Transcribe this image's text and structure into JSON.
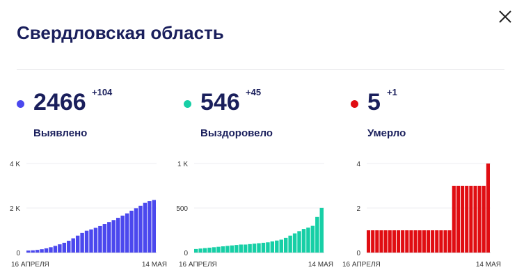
{
  "header": {
    "title": "Свердловская область",
    "close_icon": "close-icon"
  },
  "panels": [
    {
      "id": "detected",
      "value": "2466",
      "delta": "+104",
      "label": "Выявлено",
      "color": "#4b48ee",
      "chart_data": {
        "type": "bar",
        "x_start_label": "16 АПРЕЛЯ",
        "x_end_label": "14 МАЯ",
        "y_ticks": [
          "0",
          "2 K",
          "4 K"
        ],
        "y_tick_values": [
          0,
          2000,
          4000
        ],
        "ylim": [
          0,
          4000
        ],
        "values": [
          90,
          100,
          120,
          150,
          190,
          240,
          300,
          370,
          440,
          530,
          640,
          760,
          880,
          980,
          1040,
          1110,
          1190,
          1280,
          1370,
          1460,
          1560,
          1660,
          1760,
          1880,
          1990,
          2100,
          2230,
          2310,
          2362
        ],
        "grid": true
      }
    },
    {
      "id": "recovered",
      "value": "546",
      "delta": "+45",
      "label": "Выздоровело",
      "color": "#17cfa6",
      "chart_data": {
        "type": "bar",
        "x_start_label": "16 АПРЕЛЯ",
        "x_end_label": "14 МАЯ",
        "y_ticks": [
          "0",
          "500",
          "1 K"
        ],
        "y_tick_values": [
          0,
          500,
          1000
        ],
        "ylim": [
          0,
          1000
        ],
        "values": [
          40,
          45,
          50,
          55,
          60,
          65,
          70,
          75,
          80,
          85,
          90,
          90,
          95,
          100,
          105,
          110,
          115,
          125,
          135,
          145,
          165,
          190,
          215,
          240,
          265,
          280,
          300,
          400,
          501
        ],
        "grid": true
      }
    },
    {
      "id": "died",
      "value": "5",
      "delta": "+1",
      "label": "Умерло",
      "color": "#e00d12",
      "chart_data": {
        "type": "bar",
        "x_start_label": "16 АПРЕЛЯ",
        "x_end_label": "14 МАЯ",
        "y_ticks": [
          "0",
          "2",
          "4"
        ],
        "y_tick_values": [
          0,
          2,
          4
        ],
        "ylim": [
          0,
          4
        ],
        "values": [
          1,
          1,
          1,
          1,
          1,
          1,
          1,
          1,
          1,
          1,
          1,
          1,
          1,
          1,
          1,
          1,
          1,
          1,
          1,
          1,
          3,
          3,
          3,
          3,
          3,
          3,
          3,
          3,
          4
        ],
        "grid": true
      }
    }
  ]
}
